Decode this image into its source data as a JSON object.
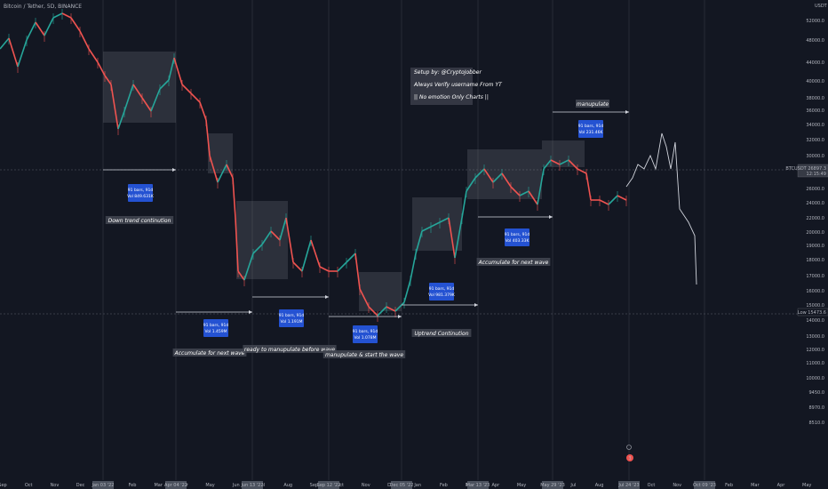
{
  "chart_data": {
    "type": "line",
    "title": "Bitcoin / Tether, 5D, BINANCE",
    "currency": "USDT",
    "price_ticks": [
      "52000.0",
      "48000.0",
      "44000.0",
      "40000.0",
      "38000.0",
      "36000.0",
      "34000.0",
      "32000.0",
      "30000.0",
      "28000.0",
      "26000.0",
      "24000.0",
      "22000.0",
      "20000.0",
      "19000.0",
      "18000.0",
      "17000.0",
      "16000.0",
      "15000.0",
      "14000.0",
      "13000.0",
      "12000.0",
      "11000.0",
      "10000.0",
      "9450.0",
      "8970.0",
      "8510.0"
    ],
    "time_ticks": [
      "Sep",
      "Oct",
      "Nov",
      "Dec",
      "Jan",
      "Feb",
      "Mar",
      "Apr",
      "May",
      "Jun",
      "Jul",
      "Aug",
      "Sep",
      "Oct",
      "Nov",
      "Dec",
      "Jan",
      "Feb",
      "Mar",
      "Apr",
      "May",
      "Jun",
      "Jul",
      "Aug",
      "Sep",
      "Oct",
      "Nov",
      "Dec",
      "Feb",
      "Mar",
      "Apr",
      "May"
    ],
    "price_labels": [
      {
        "name": "current",
        "text": "BTCUSDT 26897.3",
        "sub": "12:15:49",
        "color": "#ffffff"
      },
      {
        "name": "low",
        "text": "Low 15473.6",
        "color": "#ffffff"
      }
    ],
    "highlight_dates": [
      "Jan 03 '22",
      "Apr 04 '22",
      "Jun 13 '22",
      "Sep 12 '22",
      "Dec 05 '22",
      "Mar 13 '23",
      "May 29 '23",
      "Jul 24 '23",
      "Oct 09 '23",
      "Dec 25 '23",
      "Jan 10 '24"
    ],
    "top_right_label": "USDT",
    "marker_label": "3",
    "setup_note": [
      "Setup by: @CryptoJobber",
      "Always Verify username From YT",
      "|| No emotion Only Charts ||"
    ],
    "ranges": [
      {
        "bars": "91 bars, 91d",
        "vol": "Vol 849.631K"
      },
      {
        "bars": "91 bars, 91d",
        "vol": "Vol 1.459M"
      },
      {
        "bars": "91 bars, 91d",
        "vol": "Vol 1.191M"
      },
      {
        "bars": "91 bars, 91d",
        "vol": "Vol 1.078M"
      },
      {
        "bars": "91 bars, 91d",
        "vol": "Vol 981.379K"
      },
      {
        "bars": "91 bars, 91d",
        "vol": "Vol 403.33K"
      },
      {
        "bars": "91 bars, 91d",
        "vol": "Vol 231.46K"
      }
    ],
    "captions": [
      "Down trend continution",
      "Accumulate for next wave",
      "ready to manupulate before wave",
      "manupulate & start the wave",
      "Uptrend Continution",
      "Accumulate for next wave",
      "manupulate"
    ],
    "price_path": [
      [
        0,
        40
      ],
      [
        10,
        28
      ],
      [
        20,
        60
      ],
      [
        30,
        30
      ],
      [
        40,
        10
      ],
      [
        50,
        25
      ],
      [
        60,
        5
      ],
      [
        70,
        0
      ],
      [
        80,
        5
      ],
      [
        90,
        20
      ],
      [
        100,
        40
      ],
      [
        110,
        55
      ],
      [
        118,
        70
      ],
      [
        125,
        80
      ],
      [
        133,
        130
      ],
      [
        140,
        110
      ],
      [
        150,
        80
      ],
      [
        160,
        95
      ],
      [
        170,
        110
      ],
      [
        180,
        85
      ],
      [
        190,
        75
      ],
      [
        196,
        50
      ],
      [
        205,
        80
      ],
      [
        215,
        90
      ],
      [
        225,
        100
      ],
      [
        232,
        120
      ],
      [
        236,
        160
      ],
      [
        245,
        190
      ],
      [
        255,
        170
      ],
      [
        262,
        185
      ],
      [
        265,
        230
      ],
      [
        268,
        290
      ],
      [
        275,
        300
      ],
      [
        285,
        270
      ],
      [
        295,
        260
      ],
      [
        305,
        245
      ],
      [
        315,
        255
      ],
      [
        322,
        230
      ],
      [
        330,
        280
      ],
      [
        340,
        290
      ],
      [
        350,
        255
      ],
      [
        360,
        285
      ],
      [
        370,
        290
      ],
      [
        380,
        290
      ],
      [
        390,
        280
      ],
      [
        400,
        270
      ],
      [
        405,
        310
      ],
      [
        415,
        330
      ],
      [
        425,
        340
      ],
      [
        435,
        330
      ],
      [
        445,
        335
      ],
      [
        455,
        325
      ],
      [
        462,
        300
      ],
      [
        468,
        270
      ],
      [
        475,
        245
      ],
      [
        485,
        240
      ],
      [
        495,
        235
      ],
      [
        505,
        230
      ],
      [
        512,
        275
      ],
      [
        520,
        230
      ],
      [
        525,
        200
      ],
      [
        535,
        185
      ],
      [
        545,
        175
      ],
      [
        555,
        190
      ],
      [
        565,
        180
      ],
      [
        575,
        195
      ],
      [
        585,
        205
      ],
      [
        595,
        200
      ],
      [
        605,
        215
      ],
      [
        612,
        175
      ],
      [
        620,
        165
      ],
      [
        630,
        170
      ],
      [
        640,
        165
      ],
      [
        650,
        175
      ],
      [
        660,
        180
      ],
      [
        665,
        210
      ],
      [
        675,
        210
      ],
      [
        685,
        215
      ],
      [
        695,
        205
      ],
      [
        705,
        210
      ]
    ],
    "projection_path": [
      [
        705,
        210
      ],
      [
        712,
        200
      ],
      [
        718,
        185
      ],
      [
        725,
        190
      ],
      [
        732,
        175
      ],
      [
        738,
        190
      ],
      [
        745,
        150
      ],
      [
        750,
        165
      ],
      [
        755,
        190
      ],
      [
        760,
        160
      ],
      [
        765,
        235
      ],
      [
        775,
        250
      ],
      [
        782,
        265
      ],
      [
        784,
        320
      ]
    ]
  }
}
